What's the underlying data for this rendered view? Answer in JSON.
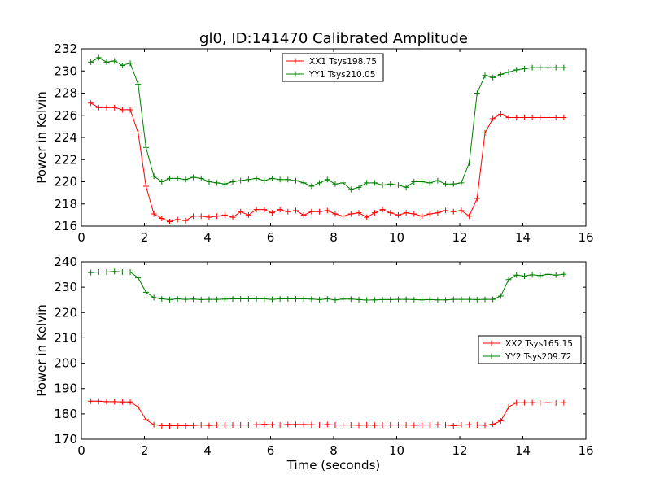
{
  "title": "gl0, ID:141470 Calibrated Amplitude",
  "colors": {
    "xx": "#ff0000",
    "yy": "#008000"
  },
  "chart_data": [
    {
      "type": "line",
      "ylabel": "Power in Kelvin",
      "xlabel": "",
      "xlim": [
        0,
        16
      ],
      "ylim": [
        216,
        232
      ],
      "xticks": [
        "0",
        "2",
        "4",
        "6",
        "8",
        "10",
        "12",
        "14",
        "16"
      ],
      "yticks": [
        "216",
        "218",
        "220",
        "222",
        "224",
        "226",
        "228",
        "230",
        "232"
      ],
      "legend": "top-center",
      "x": [
        0.3,
        0.55,
        0.8,
        1.05,
        1.3,
        1.55,
        1.8,
        2.05,
        2.3,
        2.55,
        2.8,
        3.05,
        3.3,
        3.55,
        3.8,
        4.05,
        4.3,
        4.55,
        4.8,
        5.05,
        5.3,
        5.55,
        5.8,
        6.05,
        6.3,
        6.55,
        6.8,
        7.05,
        7.3,
        7.55,
        7.8,
        8.05,
        8.3,
        8.55,
        8.8,
        9.05,
        9.3,
        9.55,
        9.8,
        10.05,
        10.3,
        10.55,
        10.8,
        11.05,
        11.3,
        11.55,
        11.8,
        12.05,
        12.3,
        12.55,
        12.8,
        13.05,
        13.3,
        13.55,
        13.8,
        14.05,
        14.3,
        14.55,
        14.8,
        15.05,
        15.3
      ],
      "series": [
        {
          "name": "XX1 Tsys198.75",
          "color": "#ff0000",
          "values": [
            227.1,
            226.7,
            226.7,
            226.7,
            226.5,
            226.5,
            224.4,
            219.6,
            217.1,
            216.7,
            216.4,
            216.6,
            216.5,
            216.9,
            216.9,
            216.8,
            216.9,
            217.0,
            216.8,
            217.3,
            217.0,
            217.5,
            217.5,
            217.2,
            217.5,
            217.3,
            217.4,
            217.0,
            217.3,
            217.3,
            217.4,
            217.1,
            216.9,
            217.1,
            217.2,
            216.8,
            217.2,
            217.5,
            217.2,
            217.0,
            217.2,
            217.1,
            216.9,
            217.1,
            217.2,
            217.4,
            217.3,
            217.4,
            216.9,
            218.5,
            224.4,
            225.7,
            226.1,
            225.8,
            225.8,
            225.8,
            225.8,
            225.8,
            225.8,
            225.8,
            225.8
          ]
        },
        {
          "name": "YY1 Tsys210.05",
          "color": "#008000",
          "values": [
            230.8,
            231.2,
            230.8,
            230.9,
            230.5,
            230.7,
            228.8,
            223.1,
            220.5,
            220.0,
            220.3,
            220.3,
            220.2,
            220.4,
            220.3,
            220.0,
            219.9,
            219.8,
            220.0,
            220.1,
            220.2,
            220.3,
            220.1,
            220.3,
            220.2,
            220.2,
            220.1,
            219.9,
            219.6,
            219.9,
            220.2,
            219.8,
            219.9,
            219.3,
            219.5,
            219.9,
            219.9,
            219.7,
            219.8,
            219.7,
            219.5,
            220.0,
            220.0,
            219.9,
            220.1,
            219.8,
            219.8,
            219.9,
            221.7,
            228.0,
            229.6,
            229.4,
            229.7,
            229.9,
            230.1,
            230.2,
            230.3,
            230.3,
            230.3,
            230.3,
            230.3
          ]
        }
      ]
    },
    {
      "type": "line",
      "ylabel": "Power in Kelvin",
      "xlabel": "Time (seconds)",
      "xlim": [
        0,
        16
      ],
      "ylim": [
        170,
        240
      ],
      "xticks": [
        "0",
        "2",
        "4",
        "6",
        "8",
        "10",
        "12",
        "14",
        "16"
      ],
      "yticks": [
        "170",
        "180",
        "190",
        "200",
        "210",
        "220",
        "230",
        "240"
      ],
      "legend": "center-right",
      "x": [
        0.3,
        0.55,
        0.8,
        1.05,
        1.3,
        1.55,
        1.8,
        2.05,
        2.3,
        2.55,
        2.8,
        3.05,
        3.3,
        3.55,
        3.8,
        4.05,
        4.3,
        4.55,
        4.8,
        5.05,
        5.3,
        5.55,
        5.8,
        6.05,
        6.3,
        6.55,
        6.8,
        7.05,
        7.3,
        7.55,
        7.8,
        8.05,
        8.3,
        8.55,
        8.8,
        9.05,
        9.3,
        9.55,
        9.8,
        10.05,
        10.3,
        10.55,
        10.8,
        11.05,
        11.3,
        11.55,
        11.8,
        12.05,
        12.3,
        12.55,
        12.8,
        13.05,
        13.3,
        13.55,
        13.8,
        14.05,
        14.3,
        14.55,
        14.8,
        15.05,
        15.3
      ],
      "series": [
        {
          "name": "XX2 Tsys165.15",
          "color": "#ff0000",
          "values": [
            185.0,
            185.0,
            184.8,
            184.8,
            184.7,
            184.7,
            182.7,
            177.7,
            175.7,
            175.3,
            175.3,
            175.3,
            175.3,
            175.4,
            175.6,
            175.4,
            175.6,
            175.6,
            175.6,
            175.6,
            175.6,
            175.7,
            175.9,
            175.7,
            175.6,
            175.8,
            175.8,
            175.8,
            175.7,
            175.6,
            175.8,
            175.6,
            175.6,
            175.6,
            175.5,
            175.6,
            175.5,
            175.6,
            175.6,
            175.6,
            175.6,
            175.5,
            175.6,
            175.6,
            175.7,
            175.6,
            175.3,
            175.6,
            175.7,
            175.6,
            175.5,
            175.9,
            177.2,
            182.7,
            184.4,
            184.4,
            184.4,
            184.3,
            184.4,
            184.3,
            184.4
          ]
        },
        {
          "name": "YY2 Tsys209.72",
          "color": "#008000",
          "values": [
            235.8,
            236.0,
            236.0,
            236.2,
            236.0,
            236.0,
            233.7,
            228.0,
            225.9,
            225.4,
            225.1,
            225.4,
            225.2,
            225.3,
            225.1,
            225.2,
            225.2,
            225.3,
            225.4,
            225.4,
            225.4,
            225.4,
            225.4,
            225.2,
            225.4,
            225.4,
            225.4,
            225.4,
            225.3,
            225.1,
            225.4,
            225.0,
            225.3,
            225.3,
            225.1,
            224.9,
            225.0,
            225.1,
            225.1,
            225.2,
            225.2,
            225.1,
            225.0,
            225.1,
            225.0,
            225.0,
            225.2,
            225.2,
            225.2,
            225.1,
            225.2,
            225.2,
            226.5,
            233.0,
            234.8,
            234.4,
            234.9,
            234.6,
            235.1,
            234.8,
            235.1
          ]
        }
      ]
    }
  ]
}
